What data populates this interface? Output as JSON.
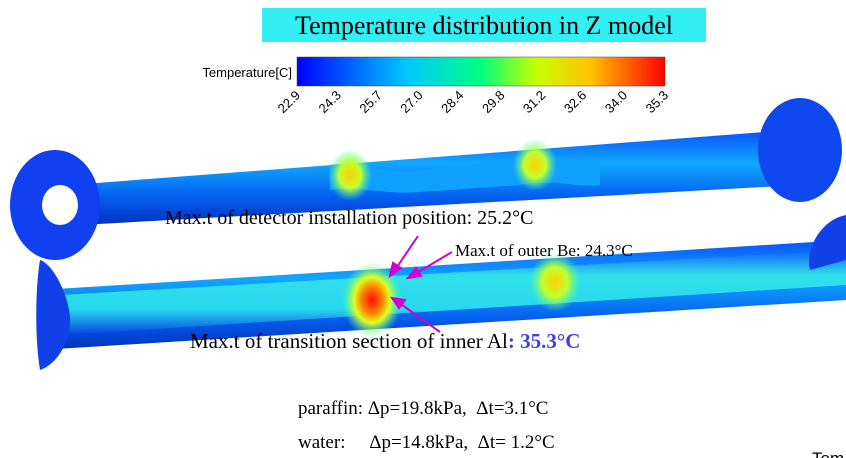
{
  "title": "Temperature distribution in Z model",
  "colorbar": {
    "label": "Temperature[C]",
    "ticks": [
      "22.9",
      "24.3",
      "25.7",
      "27.0",
      "28.4",
      "29.8",
      "31.2",
      "32.6",
      "34.0",
      "35.3"
    ]
  },
  "annotations": {
    "detector": "Max.t of detector installation position: 25.2°C",
    "outer_be": "Max.t of outer Be: 24.3°C",
    "inner_al": {
      "text": "Max.t of transition section of inner Al",
      "value": ": 35.3°C"
    }
  },
  "conditions": [
    "paraffin: Δp=19.8kPa,  Δt=3.1°C",
    "water:     Δp=14.8kPa,  Δt= 1.2°C"
  ],
  "cropped_text": "Tem"
}
